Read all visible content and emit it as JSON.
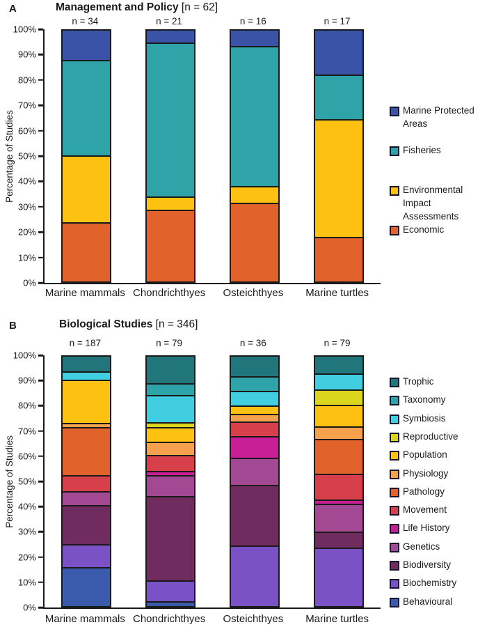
{
  "chart_data": [
    {
      "type": "bar",
      "subtype": "stacked-100pct",
      "panel_label": "A",
      "title": "Management and Policy",
      "title_n": "[n = 62]",
      "ylabel": "Percentage of Studies",
      "ylim": [
        0,
        100
      ],
      "grid": false,
      "legend_position": "right",
      "yticks": [
        "100%",
        "90%",
        "80%",
        "70%",
        "60%",
        "50%",
        "40%",
        "30%",
        "20%",
        "10%",
        "0%"
      ],
      "categories": [
        "Marine mammals",
        "Chondrichthyes",
        "Osteichthyes",
        "Marine turtles"
      ],
      "bar_n_labels": [
        "n = 34",
        "n = 21",
        "n = 16",
        "n = 17"
      ],
      "series": [
        {
          "name": "Economic",
          "color": "#E2622B",
          "values": [
            23.5,
            28.6,
            31.3,
            17.6
          ]
        },
        {
          "name": "Environmental Impact Assessments",
          "color": "#FDC112",
          "values": [
            26.5,
            4.8,
            6.2,
            47.1
          ]
        },
        {
          "name": "Fisheries",
          "color": "#2EA3A8",
          "values": [
            38.2,
            61.8,
            56.3,
            17.6
          ]
        },
        {
          "name": "Marine Protected Areas",
          "color": "#3A53A7",
          "values": [
            11.8,
            4.8,
            6.2,
            17.7
          ]
        }
      ]
    },
    {
      "type": "bar",
      "subtype": "stacked-100pct",
      "panel_label": "B",
      "title": "Biological Studies",
      "title_n": "[n = 346]",
      "ylabel": "Percentage of Studies",
      "ylim": [
        0,
        100
      ],
      "grid": false,
      "legend_position": "right",
      "yticks": [
        "100%",
        "90%",
        "80%",
        "70%",
        "60%",
        "50%",
        "40%",
        "30%",
        "20%",
        "10%",
        "0%"
      ],
      "categories": [
        "Marine mammals",
        "Chondrichthyes",
        "Osteichthyes",
        "Marine turtles"
      ],
      "bar_n_labels": [
        "n = 187",
        "n = 79",
        "n = 36",
        "n = 79"
      ],
      "series": [
        {
          "name": "Behavioural",
          "color": "#3A5AAB",
          "values": [
            15.9,
            1.5,
            0,
            0
          ]
        },
        {
          "name": "Biochemistry",
          "color": "#7A52C5",
          "values": [
            9.2,
            8.4,
            25.0,
            24.4
          ]
        },
        {
          "name": "Biodiversity",
          "color": "#712C5F",
          "values": [
            15.9,
            35.2,
            25.0,
            6.0
          ]
        },
        {
          "name": "Genetics",
          "color": "#A34893",
          "values": [
            5.2,
            8.4,
            11.0,
            11.4
          ]
        },
        {
          "name": "Life History",
          "color": "#C81E96",
          "values": [
            0,
            1.2,
            8.3,
            1.2
          ]
        },
        {
          "name": "Movement",
          "color": "#D7404B",
          "values": [
            6.3,
            6.3,
            5.6,
            10.2
          ]
        },
        {
          "name": "Pathology",
          "color": "#E2622B",
          "values": [
            19.6,
            0,
            0,
            14.4
          ]
        },
        {
          "name": "Physiology",
          "color": "#F6A14E",
          "values": [
            1.2,
            5.1,
            2.8,
            4.5
          ]
        },
        {
          "name": "Population",
          "color": "#FDC112",
          "values": [
            17.6,
            5.7,
            2.8,
            8.7
          ]
        },
        {
          "name": "Reproductive",
          "color": "#DCD51D",
          "values": [
            0,
            1.5,
            0,
            6.0
          ]
        },
        {
          "name": "Symbiosis",
          "color": "#40CEE0",
          "values": [
            2.9,
            10.8,
            5.6,
            6.0
          ]
        },
        {
          "name": "Taxonomy",
          "color": "#2EA3A8",
          "values": [
            0,
            4.5,
            5.6,
            0
          ]
        },
        {
          "name": "Trophic",
          "color": "#21767C",
          "values": [
            6.2,
            11.4,
            8.3,
            7.2
          ]
        }
      ]
    }
  ]
}
